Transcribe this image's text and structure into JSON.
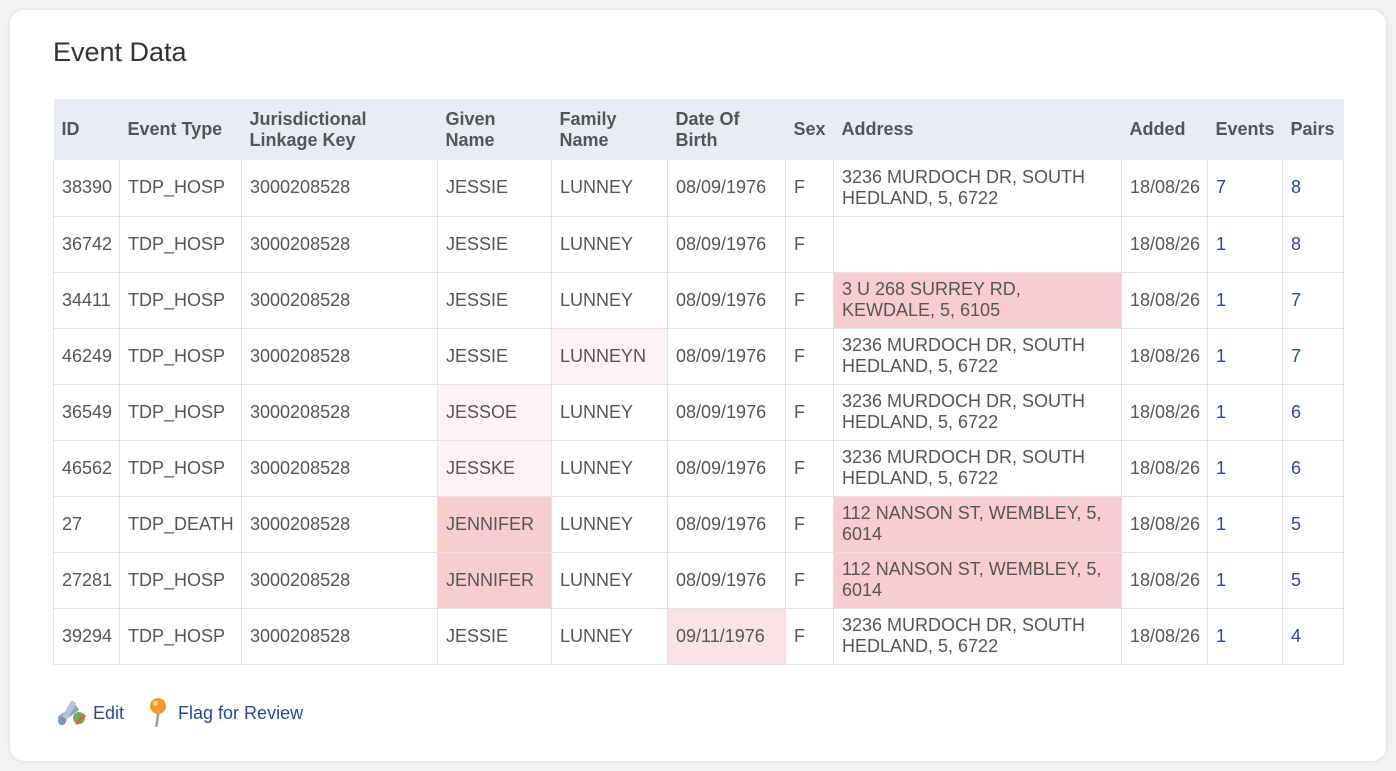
{
  "title": "Event Data",
  "columns": [
    {
      "line1": "ID",
      "line2": ""
    },
    {
      "line1": "Event Type",
      "line2": ""
    },
    {
      "line1": "Jurisdictional",
      "line2": "Linkage Key"
    },
    {
      "line1": "Given",
      "line2": "Name"
    },
    {
      "line1": "Family",
      "line2": "Name"
    },
    {
      "line1": "Date Of",
      "line2": "Birth"
    },
    {
      "line1": "Sex",
      "line2": ""
    },
    {
      "line1": "Address",
      "line2": ""
    },
    {
      "line1": "Added",
      "line2": ""
    },
    {
      "line1": "Events",
      "line2": ""
    },
    {
      "line1": "Pairs",
      "line2": ""
    }
  ],
  "rows": [
    {
      "id": "38390",
      "event_type": "TDP_HOSP",
      "linkage_key": "3000208528",
      "given_name": "JESSIE",
      "family_name": "LUNNEY",
      "dob": "08/09/1976",
      "sex": "F",
      "address_line1": "3236 MURDOCH DR, SOUTH",
      "address_line2": "HEDLAND, 5, 6722",
      "added": "18/08/26",
      "events": "7",
      "pairs": "8",
      "hl": {
        "given": "",
        "family": "",
        "dob": "",
        "address": ""
      }
    },
    {
      "id": "36742",
      "event_type": "TDP_HOSP",
      "linkage_key": "3000208528",
      "given_name": "JESSIE",
      "family_name": "LUNNEY",
      "dob": "08/09/1976",
      "sex": "F",
      "address_line1": "",
      "address_line2": "",
      "added": "18/08/26",
      "events": "1",
      "pairs": "8",
      "hl": {
        "given": "",
        "family": "",
        "dob": "",
        "address": ""
      }
    },
    {
      "id": "34411",
      "event_type": "TDP_HOSP",
      "linkage_key": "3000208528",
      "given_name": "JESSIE",
      "family_name": "LUNNEY",
      "dob": "08/09/1976",
      "sex": "F",
      "address_line1": "3 U 268 SURREY RD,",
      "address_line2": "KEWDALE, 5, 6105",
      "added": "18/08/26",
      "events": "1",
      "pairs": "7",
      "hl": {
        "given": "",
        "family": "",
        "dob": "",
        "address": "strong"
      }
    },
    {
      "id": "46249",
      "event_type": "TDP_HOSP",
      "linkage_key": "3000208528",
      "given_name": "JESSIE",
      "family_name": "LUNNEYN",
      "dob": "08/09/1976",
      "sex": "F",
      "address_line1": "3236 MURDOCH DR, SOUTH",
      "address_line2": "HEDLAND, 5, 6722",
      "added": "18/08/26",
      "events": "1",
      "pairs": "7",
      "hl": {
        "given": "",
        "family": "light",
        "dob": "",
        "address": ""
      }
    },
    {
      "id": "36549",
      "event_type": "TDP_HOSP",
      "linkage_key": "3000208528",
      "given_name": "JESSOE",
      "family_name": "LUNNEY",
      "dob": "08/09/1976",
      "sex": "F",
      "address_line1": "3236 MURDOCH DR, SOUTH",
      "address_line2": "HEDLAND, 5, 6722",
      "added": "18/08/26",
      "events": "1",
      "pairs": "6",
      "hl": {
        "given": "light",
        "family": "",
        "dob": "",
        "address": ""
      }
    },
    {
      "id": "46562",
      "event_type": "TDP_HOSP",
      "linkage_key": "3000208528",
      "given_name": "JESSKE",
      "family_name": "LUNNEY",
      "dob": "08/09/1976",
      "sex": "F",
      "address_line1": "3236 MURDOCH DR, SOUTH",
      "address_line2": "HEDLAND, 5, 6722",
      "added": "18/08/26",
      "events": "1",
      "pairs": "6",
      "hl": {
        "given": "light",
        "family": "",
        "dob": "",
        "address": ""
      }
    },
    {
      "id": "27",
      "event_type": "TDP_DEATH",
      "linkage_key": "3000208528",
      "given_name": "JENNIFER",
      "family_name": "LUNNEY",
      "dob": "08/09/1976",
      "sex": "F",
      "address_line1": "112 NANSON ST, WEMBLEY, 5,",
      "address_line2": "6014",
      "added": "18/08/26",
      "events": "1",
      "pairs": "5",
      "hl": {
        "given": "strong",
        "family": "",
        "dob": "",
        "address": "strong"
      }
    },
    {
      "id": "27281",
      "event_type": "TDP_HOSP",
      "linkage_key": "3000208528",
      "given_name": "JENNIFER",
      "family_name": "LUNNEY",
      "dob": "08/09/1976",
      "sex": "F",
      "address_line1": "112 NANSON ST, WEMBLEY, 5,",
      "address_line2": "6014",
      "added": "18/08/26",
      "events": "1",
      "pairs": "5",
      "hl": {
        "given": "strong",
        "family": "",
        "dob": "",
        "address": "strong"
      }
    },
    {
      "id": "39294",
      "event_type": "TDP_HOSP",
      "linkage_key": "3000208528",
      "given_name": "JESSIE",
      "family_name": "LUNNEY",
      "dob": "09/11/1976",
      "sex": "F",
      "address_line1": "3236 MURDOCH DR, SOUTH",
      "address_line2": "HEDLAND, 5, 6722",
      "added": "18/08/26",
      "events": "1",
      "pairs": "4",
      "hl": {
        "given": "",
        "family": "",
        "dob": "light2",
        "address": ""
      }
    }
  ],
  "actions": {
    "edit_label": "Edit",
    "flag_label": "Flag for Review"
  },
  "colors": {
    "link": "#2a4a8a",
    "header_bg": "#e8edf4",
    "mismatch_strong": "#f8cdd0",
    "mismatch_light": "#fdf3f4"
  }
}
